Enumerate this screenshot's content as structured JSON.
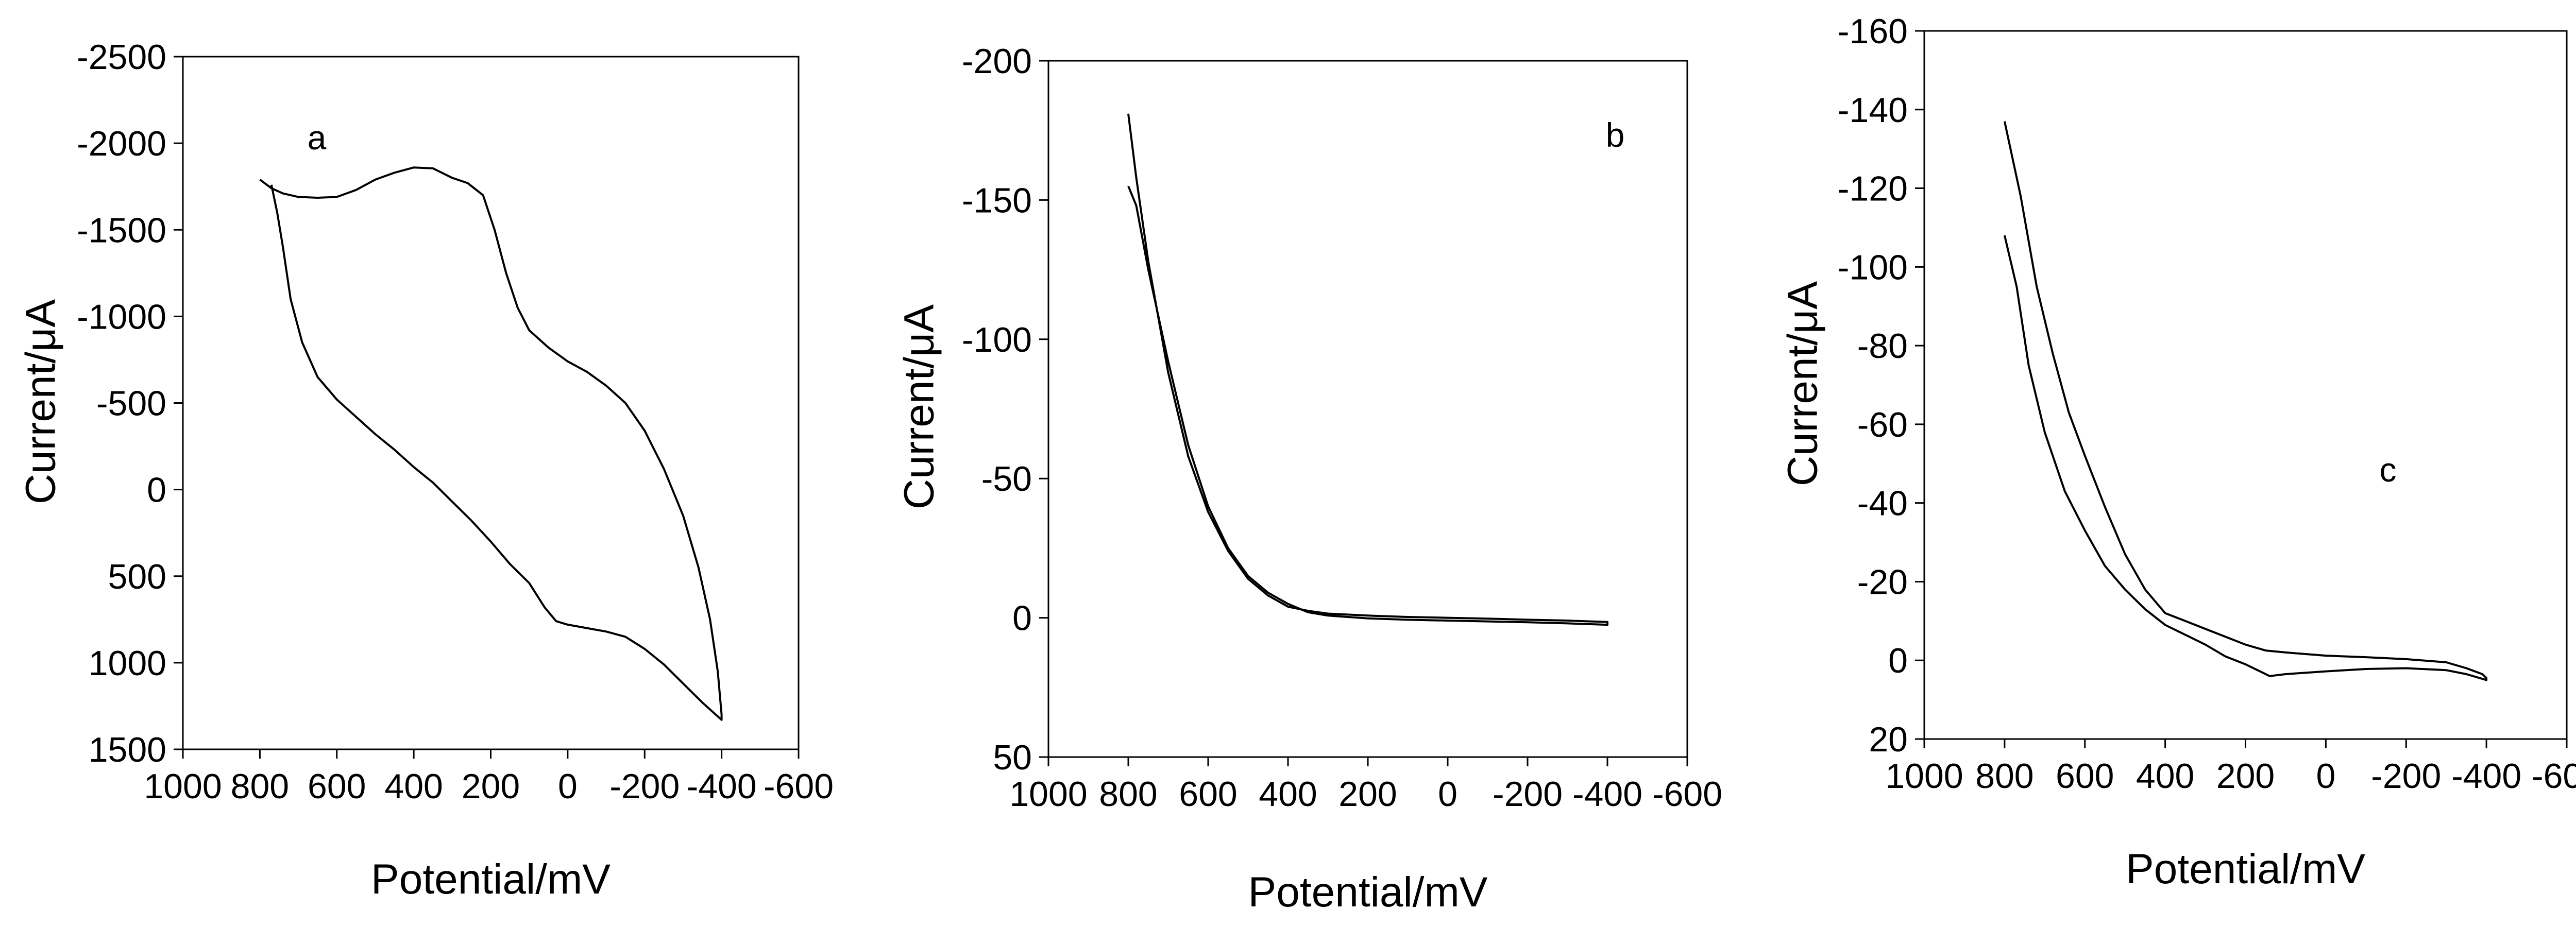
{
  "chart_data": [
    {
      "type": "line",
      "panel_label": "a",
      "xlabel": "Potential/mV",
      "ylabel": "Current/μA",
      "xlim": [
        1000,
        -600
      ],
      "ylim": [
        -2500,
        1500
      ],
      "x_axis_reversed": true,
      "xticks": [
        1000,
        800,
        600,
        400,
        200,
        0,
        -200,
        -400,
        -600
      ],
      "xtick_labels": [
        "1000",
        "800",
        "600",
        "400",
        "200",
        "0",
        "-200",
        "-400",
        "-600"
      ],
      "yticks": [
        1500,
        1000,
        500,
        0,
        -500,
        -1000,
        -1500,
        -2000,
        -2500
      ],
      "ytick_labels": [
        "1500",
        "1000",
        "500",
        "0",
        "-500",
        "-1000",
        "-1500",
        "-2000",
        "-2500"
      ],
      "grid": false,
      "series": [
        {
          "points": [
            [
              800,
              -1790
            ],
            [
              770,
              -1740
            ],
            [
              740,
              -1710
            ],
            [
              700,
              -1690
            ],
            [
              650,
              -1685
            ],
            [
              600,
              -1690
            ],
            [
              550,
              -1730
            ],
            [
              500,
              -1790
            ],
            [
              450,
              -1830
            ],
            [
              400,
              -1860
            ],
            [
              350,
              -1855
            ],
            [
              300,
              -1800
            ],
            [
              260,
              -1770
            ],
            [
              220,
              -1700
            ],
            [
              190,
              -1500
            ],
            [
              160,
              -1250
            ],
            [
              130,
              -1050
            ],
            [
              100,
              -920
            ],
            [
              50,
              -820
            ],
            [
              0,
              -740
            ],
            [
              -50,
              -680
            ],
            [
              -100,
              -600
            ],
            [
              -150,
              -500
            ],
            [
              -200,
              -340
            ],
            [
              -250,
              -120
            ],
            [
              -300,
              150
            ],
            [
              -340,
              450
            ],
            [
              -370,
              750
            ],
            [
              -390,
              1050
            ],
            [
              -400,
              1300
            ],
            [
              -400,
              1330
            ],
            [
              -350,
              1230
            ],
            [
              -300,
              1120
            ],
            [
              -250,
              1010
            ],
            [
              -200,
              920
            ],
            [
              -150,
              850
            ],
            [
              -100,
              820
            ],
            [
              -50,
              800
            ],
            [
              0,
              780
            ],
            [
              30,
              760
            ],
            [
              60,
              680
            ],
            [
              100,
              540
            ],
            [
              150,
              430
            ],
            [
              200,
              300
            ],
            [
              250,
              180
            ],
            [
              300,
              70
            ],
            [
              350,
              -40
            ],
            [
              400,
              -130
            ],
            [
              450,
              -230
            ],
            [
              500,
              -320
            ],
            [
              550,
              -420
            ],
            [
              600,
              -520
            ],
            [
              650,
              -650
            ],
            [
              690,
              -850
            ],
            [
              720,
              -1100
            ],
            [
              740,
              -1400
            ],
            [
              755,
              -1600
            ],
            [
              770,
              -1760
            ]
          ]
        }
      ]
    },
    {
      "type": "line",
      "panel_label": "b",
      "xlabel": "Potential/mV",
      "ylabel": "Current/μA",
      "xlim": [
        1000,
        -600
      ],
      "ylim": [
        -200,
        50
      ],
      "x_axis_reversed": true,
      "xticks": [
        1000,
        800,
        600,
        400,
        200,
        0,
        -200,
        -400,
        -600
      ],
      "xtick_labels": [
        "1000",
        "800",
        "600",
        "400",
        "200",
        "0",
        "-200",
        "-400",
        "-600"
      ],
      "yticks": [
        50,
        0,
        -50,
        -100,
        -150,
        -200
      ],
      "ytick_labels": [
        "50",
        "0",
        "-50",
        "-100",
        "-150",
        "-200"
      ],
      "grid": false,
      "series": [
        {
          "points": [
            [
              800,
              -181
            ],
            [
              780,
              -158
            ],
            [
              750,
              -128
            ],
            [
              700,
              -88
            ],
            [
              650,
              -58
            ],
            [
              600,
              -38
            ],
            [
              550,
              -24
            ],
            [
              500,
              -14
            ],
            [
              450,
              -8
            ],
            [
              400,
              -4
            ],
            [
              350,
              -2.5
            ],
            [
              300,
              -1.5
            ],
            [
              200,
              -0.8
            ],
            [
              100,
              -0.3
            ],
            [
              0,
              0
            ],
            [
              -100,
              0.3
            ],
            [
              -200,
              0.7
            ],
            [
              -300,
              1.0
            ],
            [
              -400,
              1.5
            ],
            [
              -400,
              2.5
            ],
            [
              -300,
              2.0
            ],
            [
              -200,
              1.6
            ],
            [
              -100,
              1.3
            ],
            [
              0,
              1.0
            ],
            [
              100,
              0.7
            ],
            [
              200,
              0.2
            ],
            [
              300,
              -0.8
            ],
            [
              350,
              -2
            ],
            [
              400,
              -5
            ],
            [
              450,
              -9
            ],
            [
              500,
              -15
            ],
            [
              550,
              -25
            ],
            [
              600,
              -40
            ],
            [
              650,
              -62
            ],
            [
              700,
              -92
            ],
            [
              750,
              -125
            ],
            [
              780,
              -148
            ],
            [
              800,
              -155
            ]
          ]
        }
      ]
    },
    {
      "type": "line",
      "panel_label": "c",
      "xlabel": "Potential/mV",
      "ylabel": "Current/μA",
      "xlim": [
        1000,
        -600
      ],
      "ylim": [
        -160,
        20
      ],
      "x_axis_reversed": true,
      "xticks": [
        1000,
        800,
        600,
        400,
        200,
        0,
        -200,
        -400,
        -600
      ],
      "xtick_labels": [
        "1000",
        "800",
        "600",
        "400",
        "200",
        "0",
        "-200",
        "-400",
        "-600"
      ],
      "yticks": [
        20,
        0,
        -20,
        -40,
        -60,
        -80,
        -100,
        -120,
        -140,
        -160
      ],
      "ytick_labels": [
        "20",
        "0",
        "-20",
        "-40",
        "-60",
        "-80",
        "-100",
        "-120",
        "-140",
        "-160"
      ],
      "grid": false,
      "series": [
        {
          "points": [
            [
              800,
              -137
            ],
            [
              760,
              -118
            ],
            [
              720,
              -95
            ],
            [
              680,
              -78
            ],
            [
              640,
              -63
            ],
            [
              600,
              -52
            ],
            [
              550,
              -39
            ],
            [
              500,
              -27
            ],
            [
              450,
              -18
            ],
            [
              400,
              -12
            ],
            [
              350,
              -10
            ],
            [
              300,
              -8
            ],
            [
              250,
              -6
            ],
            [
              200,
              -4
            ],
            [
              150,
              -2.5
            ],
            [
              100,
              -2
            ],
            [
              0,
              -1.2
            ],
            [
              -100,
              -0.8
            ],
            [
              -200,
              -0.3
            ],
            [
              -300,
              0.5
            ],
            [
              -350,
              2
            ],
            [
              -390,
              3.5
            ],
            [
              -400,
              4.5
            ],
            [
              -400,
              5
            ],
            [
              -350,
              3.5
            ],
            [
              -300,
              2.5
            ],
            [
              -200,
              2
            ],
            [
              -100,
              2.2
            ],
            [
              0,
              2.8
            ],
            [
              100,
              3.5
            ],
            [
              140,
              4
            ],
            [
              160,
              3
            ],
            [
              200,
              1
            ],
            [
              250,
              -1
            ],
            [
              300,
              -4
            ],
            [
              350,
              -6.5
            ],
            [
              400,
              -9
            ],
            [
              450,
              -13
            ],
            [
              500,
              -18
            ],
            [
              550,
              -24
            ],
            [
              600,
              -33
            ],
            [
              650,
              -43
            ],
            [
              700,
              -58
            ],
            [
              740,
              -75
            ],
            [
              770,
              -95
            ],
            [
              800,
              -108
            ]
          ]
        }
      ]
    }
  ]
}
